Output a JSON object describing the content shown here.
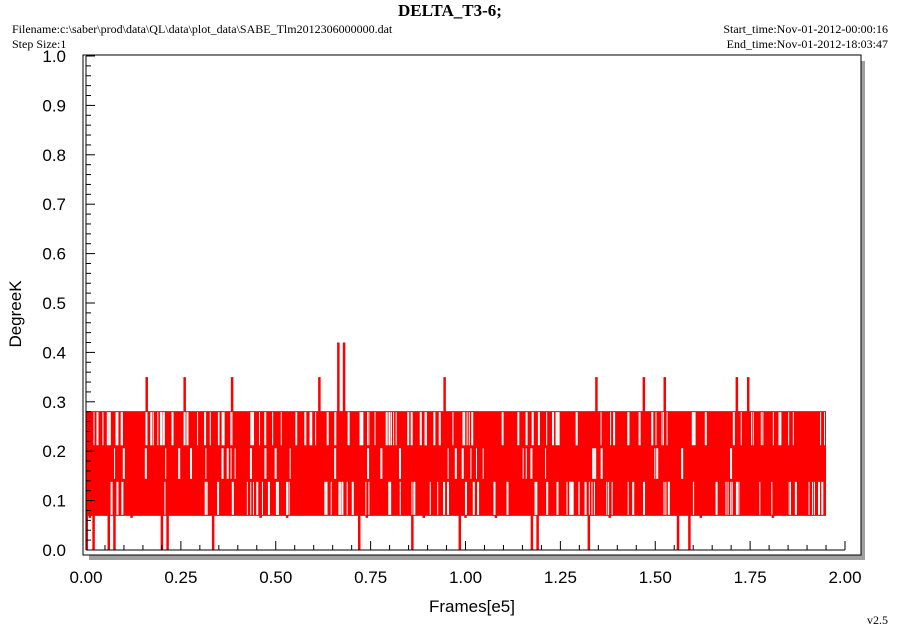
{
  "header": {
    "title": "DELTA_T3-6;",
    "filename": "Filename:c:\\saber\\prod\\data\\QL\\data\\plot_data\\SABE_Tlm2012306000000.dat",
    "step_size": "Step Size:1",
    "start_time": "Start_time:Nov-01-2012-00:00:16",
    "end_time": "End_time:Nov-01-2012-18:03:47"
  },
  "footer": {
    "version": "v2.5"
  },
  "colors": {
    "series": "#ff0000",
    "shadow": "#a0a0a0"
  },
  "chart_data": {
    "type": "line",
    "title": "DELTA_T3-6;",
    "xlabel": "Frames[e5]",
    "ylabel": "DegreeK",
    "xlim": [
      0.0,
      2.0
    ],
    "ylim": [
      0.0,
      1.0
    ],
    "xticks": [
      "0.00",
      "0.25",
      "0.50",
      "0.75",
      "1.00",
      "1.25",
      "1.50",
      "1.75",
      "2.00"
    ],
    "yticks": [
      "0.0",
      "0.1",
      "0.2",
      "0.3",
      "0.4",
      "0.5",
      "0.6",
      "0.7",
      "0.8",
      "0.9",
      "1.0"
    ],
    "grid": false,
    "series": [
      {
        "data_extent_x": [
          0.0,
          1.95
        ],
        "levels": [
          0.0,
          0.07,
          0.14,
          0.21,
          0.28,
          0.35,
          0.42
        ],
        "band": [
          0.07,
          0.28
        ],
        "spikes_0_35": [
          0.16,
          0.26,
          0.385,
          0.615,
          0.945,
          1.345,
          1.47,
          1.525,
          1.715,
          1.745
        ],
        "spikes_0_42": [
          0.665,
          0.68
        ],
        "dips_0_00": [
          0.02,
          0.06,
          0.075,
          0.2,
          0.215,
          0.335,
          0.72,
          0.86,
          0.985,
          1.175,
          1.19,
          1.325,
          1.56,
          1.59
        ],
        "dips_0_07": [
          0.01,
          0.12,
          0.46,
          0.53,
          0.74,
          0.89,
          1.0,
          1.08,
          1.38,
          1.62,
          1.81
        ]
      }
    ]
  }
}
